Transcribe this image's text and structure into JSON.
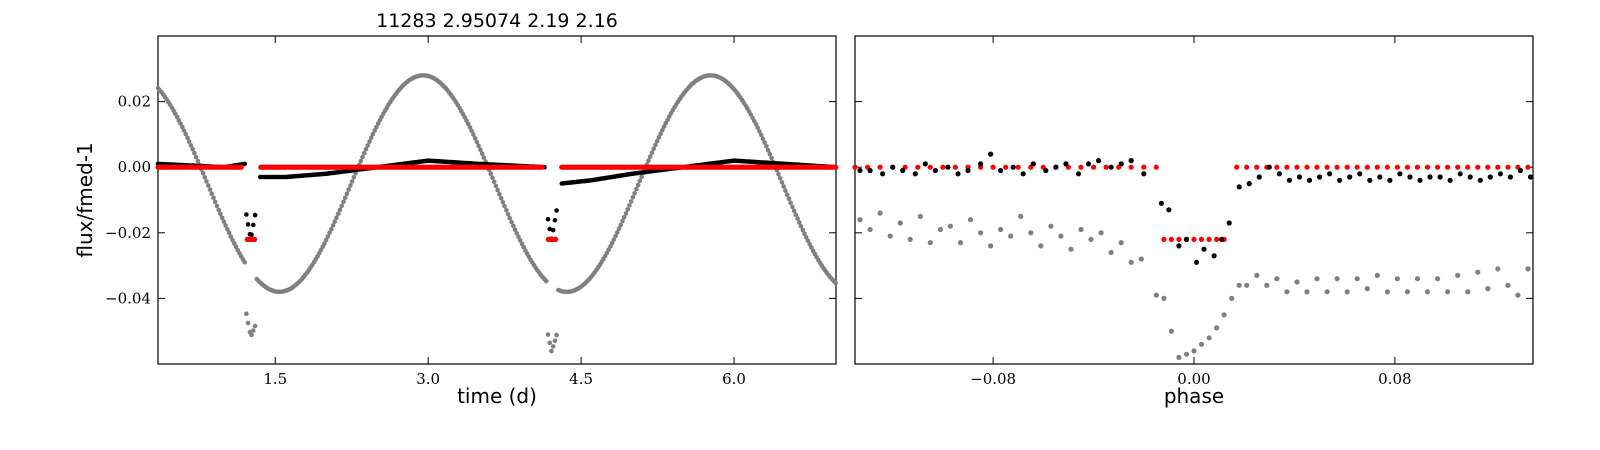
{
  "chart_data": [
    {
      "type": "scatter",
      "title": "11283 2.95074 2.19 2.16",
      "xlabel": "time (d)",
      "ylabel": "flux/fmed-1",
      "xlim": [
        0.35,
        7.0
      ],
      "ylim": [
        -0.06,
        0.04
      ],
      "xticks": [
        1.5,
        3.0,
        4.5,
        6.0
      ],
      "xtick_labels": [
        "1.5",
        "3.0",
        "4.5",
        "6.0"
      ],
      "yticks": [
        0.02,
        0.0,
        -0.02,
        -0.04
      ],
      "ytick_labels": [
        "0.02",
        "0.00",
        "−0.02",
        "−0.04"
      ],
      "grid": false,
      "colors": {
        "raw": "#808080",
        "detrended": "#000000",
        "model": "#ff0000"
      },
      "series": [
        {
          "series_id": "raw",
          "trend": {
            "x0": 2.95,
            "amplitude": 0.033,
            "period": 2.82,
            "offset": -0.005
          },
          "transits": [
            {
              "center": 1.26,
              "depth": 0.02,
              "half_width": 0.05
            },
            {
              "center": 4.21,
              "depth": 0.02,
              "half_width": 0.05
            }
          ]
        },
        {
          "series_id": "detrended",
          "segments": [
            {
              "x": [
                0.35,
                1.0,
                1.2
              ],
              "y": [
                0.001,
                0.0,
                0.001
              ]
            },
            {
              "x": [
                1.35,
                1.6,
                2.0,
                2.5,
                3.0,
                3.5,
                4.15
              ],
              "y": [
                -0.003,
                -0.003,
                -0.002,
                0.0,
                0.002,
                0.001,
                0.0
              ]
            },
            {
              "x": [
                4.3,
                4.6,
                5.0,
                5.5,
                6.0,
                7.0
              ],
              "y": [
                -0.005,
                -0.004,
                -0.002,
                0.0,
                0.002,
                0.0
              ]
            }
          ],
          "transits": [
            {
              "center": 1.26,
              "depth": 0.022,
              "half_width": 0.05
            },
            {
              "center": 4.21,
              "depth": 0.022,
              "half_width": 0.05
            }
          ]
        },
        {
          "series_id": "model",
          "baseline": 0.0,
          "transit_depth": 0.022,
          "transit_x": [
            [
              1.22,
              1.3
            ],
            [
              4.17,
              4.25
            ]
          ]
        }
      ]
    },
    {
      "type": "scatter",
      "xlabel": "phase",
      "xlim": [
        -0.135,
        0.135
      ],
      "ylim": [
        -0.06,
        0.04
      ],
      "xticks": [
        -0.08,
        0.0,
        0.08
      ],
      "xtick_labels": [
        "−0.08",
        "0.00",
        "0.08"
      ],
      "yticks": [
        0.02,
        0.0,
        -0.02,
        -0.04
      ],
      "grid": false,
      "colors": {
        "raw": "#808080",
        "detrended": "#000000",
        "model": "#ff0000"
      },
      "series": [
        {
          "series_id": "model",
          "x": [
            -0.135,
            -0.13,
            -0.125,
            -0.12,
            -0.115,
            -0.11,
            -0.105,
            -0.1,
            -0.095,
            -0.09,
            -0.085,
            -0.08,
            -0.075,
            -0.07,
            -0.065,
            -0.06,
            -0.055,
            -0.05,
            -0.045,
            -0.04,
            -0.035,
            -0.03,
            -0.025,
            -0.02,
            -0.015,
            -0.012,
            -0.009,
            -0.006,
            -0.003,
            0.0,
            0.003,
            0.006,
            0.009,
            0.012,
            0.017,
            0.021,
            0.025,
            0.029,
            0.033,
            0.037,
            0.041,
            0.045,
            0.049,
            0.053,
            0.057,
            0.061,
            0.065,
            0.069,
            0.073,
            0.077,
            0.081,
            0.085,
            0.089,
            0.093,
            0.097,
            0.101,
            0.105,
            0.109,
            0.113,
            0.117,
            0.121,
            0.125,
            0.129,
            0.133
          ],
          "y": [
            0.0,
            0.0,
            0.0,
            0.0,
            0.0,
            0.0,
            0.0,
            0.0,
            0.0,
            0.0,
            0.0,
            0.0,
            0.0,
            0.0,
            0.0,
            0.0,
            0.0,
            0.0,
            0.0,
            0.0,
            0.0,
            0.0,
            0.0,
            0.0,
            0.0,
            -0.022,
            -0.022,
            -0.022,
            -0.022,
            -0.022,
            -0.022,
            -0.022,
            -0.022,
            -0.022,
            0.0,
            0.0,
            0.0,
            0.0,
            0.0,
            0.0,
            0.0,
            0.0,
            0.0,
            0.0,
            0.0,
            0.0,
            0.0,
            0.0,
            0.0,
            0.0,
            0.0,
            0.0,
            0.0,
            0.0,
            0.0,
            0.0,
            0.0,
            0.0,
            0.0,
            0.0,
            0.0,
            0.0,
            0.0,
            0.0
          ]
        },
        {
          "series_id": "detrended",
          "x": [
            -0.133,
            -0.129,
            -0.124,
            -0.12,
            -0.116,
            -0.111,
            -0.107,
            -0.103,
            -0.098,
            -0.094,
            -0.09,
            -0.085,
            -0.081,
            -0.077,
            -0.072,
            -0.068,
            -0.064,
            -0.059,
            -0.055,
            -0.051,
            -0.046,
            -0.042,
            -0.038,
            -0.033,
            -0.029,
            -0.025,
            -0.02,
            -0.013,
            -0.01,
            -0.006,
            -0.003,
            0.001,
            0.004,
            0.008,
            0.011,
            0.014,
            0.018,
            0.022,
            0.026,
            0.03,
            0.034,
            0.038,
            0.042,
            0.046,
            0.05,
            0.054,
            0.058,
            0.062,
            0.066,
            0.07,
            0.074,
            0.078,
            0.082,
            0.086,
            0.09,
            0.094,
            0.098,
            0.102,
            0.106,
            0.11,
            0.114,
            0.118,
            0.122,
            0.126,
            0.13,
            0.134
          ],
          "y": [
            -0.001,
            -0.001,
            -0.002,
            0.0,
            -0.001,
            -0.002,
            0.001,
            -0.001,
            0.0,
            -0.002,
            -0.001,
            0.001,
            0.004,
            -0.001,
            0.0,
            -0.002,
            0.001,
            -0.001,
            0.0,
            0.001,
            -0.002,
            0.001,
            0.002,
            0.0,
            0.001,
            0.002,
            -0.002,
            -0.011,
            -0.013,
            -0.024,
            -0.022,
            -0.029,
            -0.025,
            -0.027,
            -0.022,
            -0.017,
            -0.006,
            -0.005,
            -0.003,
            0.0,
            -0.002,
            -0.004,
            -0.003,
            -0.004,
            -0.003,
            -0.002,
            -0.004,
            -0.003,
            -0.002,
            -0.004,
            -0.003,
            -0.004,
            -0.002,
            -0.003,
            -0.004,
            -0.003,
            -0.003,
            -0.004,
            -0.002,
            -0.003,
            -0.004,
            -0.003,
            -0.002,
            -0.003,
            -0.001,
            -0.003
          ]
        },
        {
          "series_id": "raw",
          "x": [
            -0.133,
            -0.129,
            -0.125,
            -0.121,
            -0.117,
            -0.113,
            -0.109,
            -0.105,
            -0.101,
            -0.097,
            -0.093,
            -0.089,
            -0.085,
            -0.081,
            -0.077,
            -0.073,
            -0.069,
            -0.065,
            -0.061,
            -0.057,
            -0.053,
            -0.049,
            -0.045,
            -0.041,
            -0.037,
            -0.033,
            -0.029,
            -0.025,
            -0.021,
            -0.015,
            -0.012,
            -0.009,
            -0.006,
            -0.003,
            0.0,
            0.003,
            0.006,
            0.009,
            0.012,
            0.015,
            0.018,
            0.021,
            0.025,
            0.029,
            0.033,
            0.037,
            0.041,
            0.045,
            0.049,
            0.053,
            0.057,
            0.061,
            0.065,
            0.069,
            0.073,
            0.077,
            0.081,
            0.085,
            0.089,
            0.093,
            0.097,
            0.101,
            0.105,
            0.109,
            0.113,
            0.117,
            0.121,
            0.125,
            0.129,
            0.133
          ],
          "y": [
            -0.016,
            -0.019,
            -0.014,
            -0.021,
            -0.017,
            -0.022,
            -0.015,
            -0.023,
            -0.019,
            -0.018,
            -0.023,
            -0.016,
            -0.02,
            -0.024,
            -0.019,
            -0.021,
            -0.015,
            -0.02,
            -0.024,
            -0.018,
            -0.021,
            -0.025,
            -0.019,
            -0.022,
            -0.02,
            -0.026,
            -0.023,
            -0.029,
            -0.028,
            -0.039,
            -0.04,
            -0.05,
            -0.058,
            -0.057,
            -0.056,
            -0.054,
            -0.052,
            -0.049,
            -0.045,
            -0.04,
            -0.036,
            -0.036,
            -0.033,
            -0.036,
            -0.034,
            -0.038,
            -0.035,
            -0.038,
            -0.034,
            -0.038,
            -0.034,
            -0.038,
            -0.034,
            -0.037,
            -0.033,
            -0.038,
            -0.034,
            -0.038,
            -0.034,
            -0.038,
            -0.034,
            -0.038,
            -0.033,
            -0.038,
            -0.032,
            -0.037,
            -0.031,
            -0.036,
            -0.039,
            -0.031
          ]
        }
      ]
    }
  ]
}
